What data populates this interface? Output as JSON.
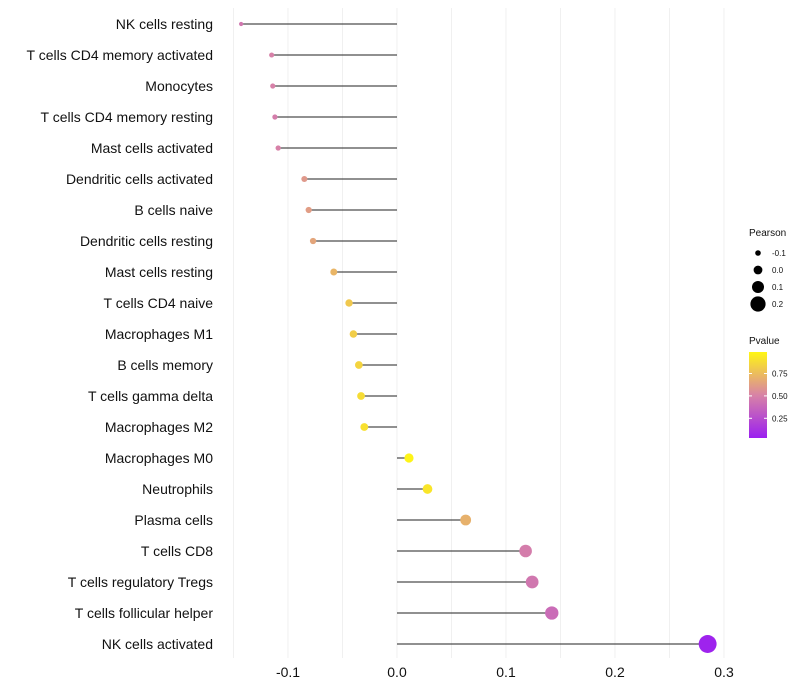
{
  "chart_data": {
    "type": "lollipop",
    "categories": [
      "NK cells resting",
      "T cells CD4 memory activated",
      "Monocytes",
      "T cells CD4 memory resting",
      "Mast cells activated",
      "Dendritic cells activated",
      "B cells naive",
      "Dendritic cells resting",
      "Mast cells resting",
      "T cells CD4 naive",
      "Macrophages M1",
      "B cells memory",
      "T cells gamma delta",
      "Macrophages M2",
      "Macrophages M0",
      "Neutrophils",
      "Plasma cells",
      "T cells CD8",
      "T cells regulatory  Tregs",
      "T cells follicular helper",
      "NK cells activated"
    ],
    "values": [
      -0.143,
      -0.115,
      -0.114,
      -0.112,
      -0.109,
      -0.085,
      -0.081,
      -0.077,
      -0.058,
      -0.044,
      -0.04,
      -0.035,
      -0.033,
      -0.03,
      0.011,
      0.028,
      0.063,
      0.118,
      0.124,
      0.142,
      0.285
    ],
    "pvalues": [
      0.45,
      0.5,
      0.5,
      0.48,
      0.5,
      0.6,
      0.62,
      0.65,
      0.72,
      0.8,
      0.82,
      0.85,
      0.88,
      0.9,
      0.98,
      0.92,
      0.7,
      0.48,
      0.45,
      0.4,
      0.05
    ],
    "xlim": [
      -0.15,
      0.3
    ],
    "xticks": [
      -0.1,
      0.0,
      0.1,
      0.2,
      0.3
    ],
    "xtick_labels": [
      "-0.1",
      "0.0",
      "0.1",
      "0.2",
      "0.3"
    ],
    "title": "",
    "xlabel": "",
    "ylabel": "",
    "grid": true,
    "legend_size": {
      "title": "Pearson",
      "entries": [
        {
          "label": "-0.1",
          "value": -0.1
        },
        {
          "label": "0.0",
          "value": 0.0
        },
        {
          "label": "0.1",
          "value": 0.1
        },
        {
          "label": "0.2",
          "value": 0.2
        }
      ],
      "placement": "right"
    },
    "legend_color": {
      "title": "Pvalue",
      "ticks": [
        {
          "label": "0.75",
          "value": 0.75
        },
        {
          "label": "0.50",
          "value": 0.5
        },
        {
          "label": "0.25",
          "value": 0.25
        }
      ],
      "range": [
        0.03,
        0.99
      ],
      "colors": {
        "low": "#9b1ff0",
        "mid": "#d883a6",
        "high": "#fff614"
      },
      "placement": "right"
    }
  }
}
